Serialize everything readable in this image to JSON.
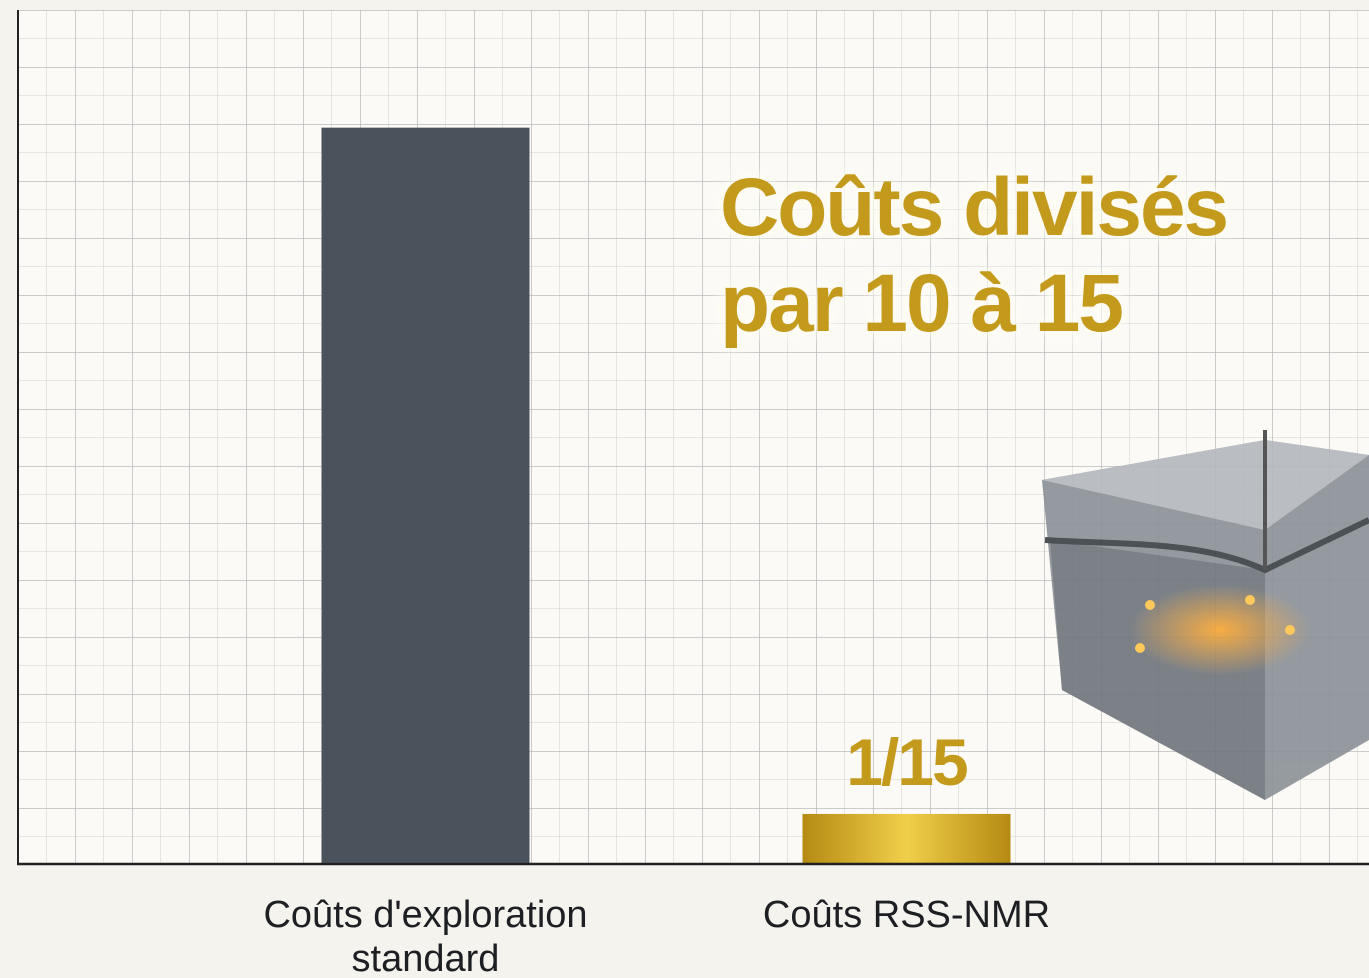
{
  "chart_data": {
    "type": "bar",
    "annotation": "Coûts divisés par 10 à 15",
    "categories": [
      "Coûts d'exploration standard",
      "Coûts RSS-NMR"
    ],
    "values": [
      1,
      0.0667
    ],
    "value_labels": [
      null,
      "1/15"
    ],
    "colors": [
      "#4a535c",
      "#c9a21a"
    ],
    "ylim": [
      0,
      1.16
    ]
  }
}
